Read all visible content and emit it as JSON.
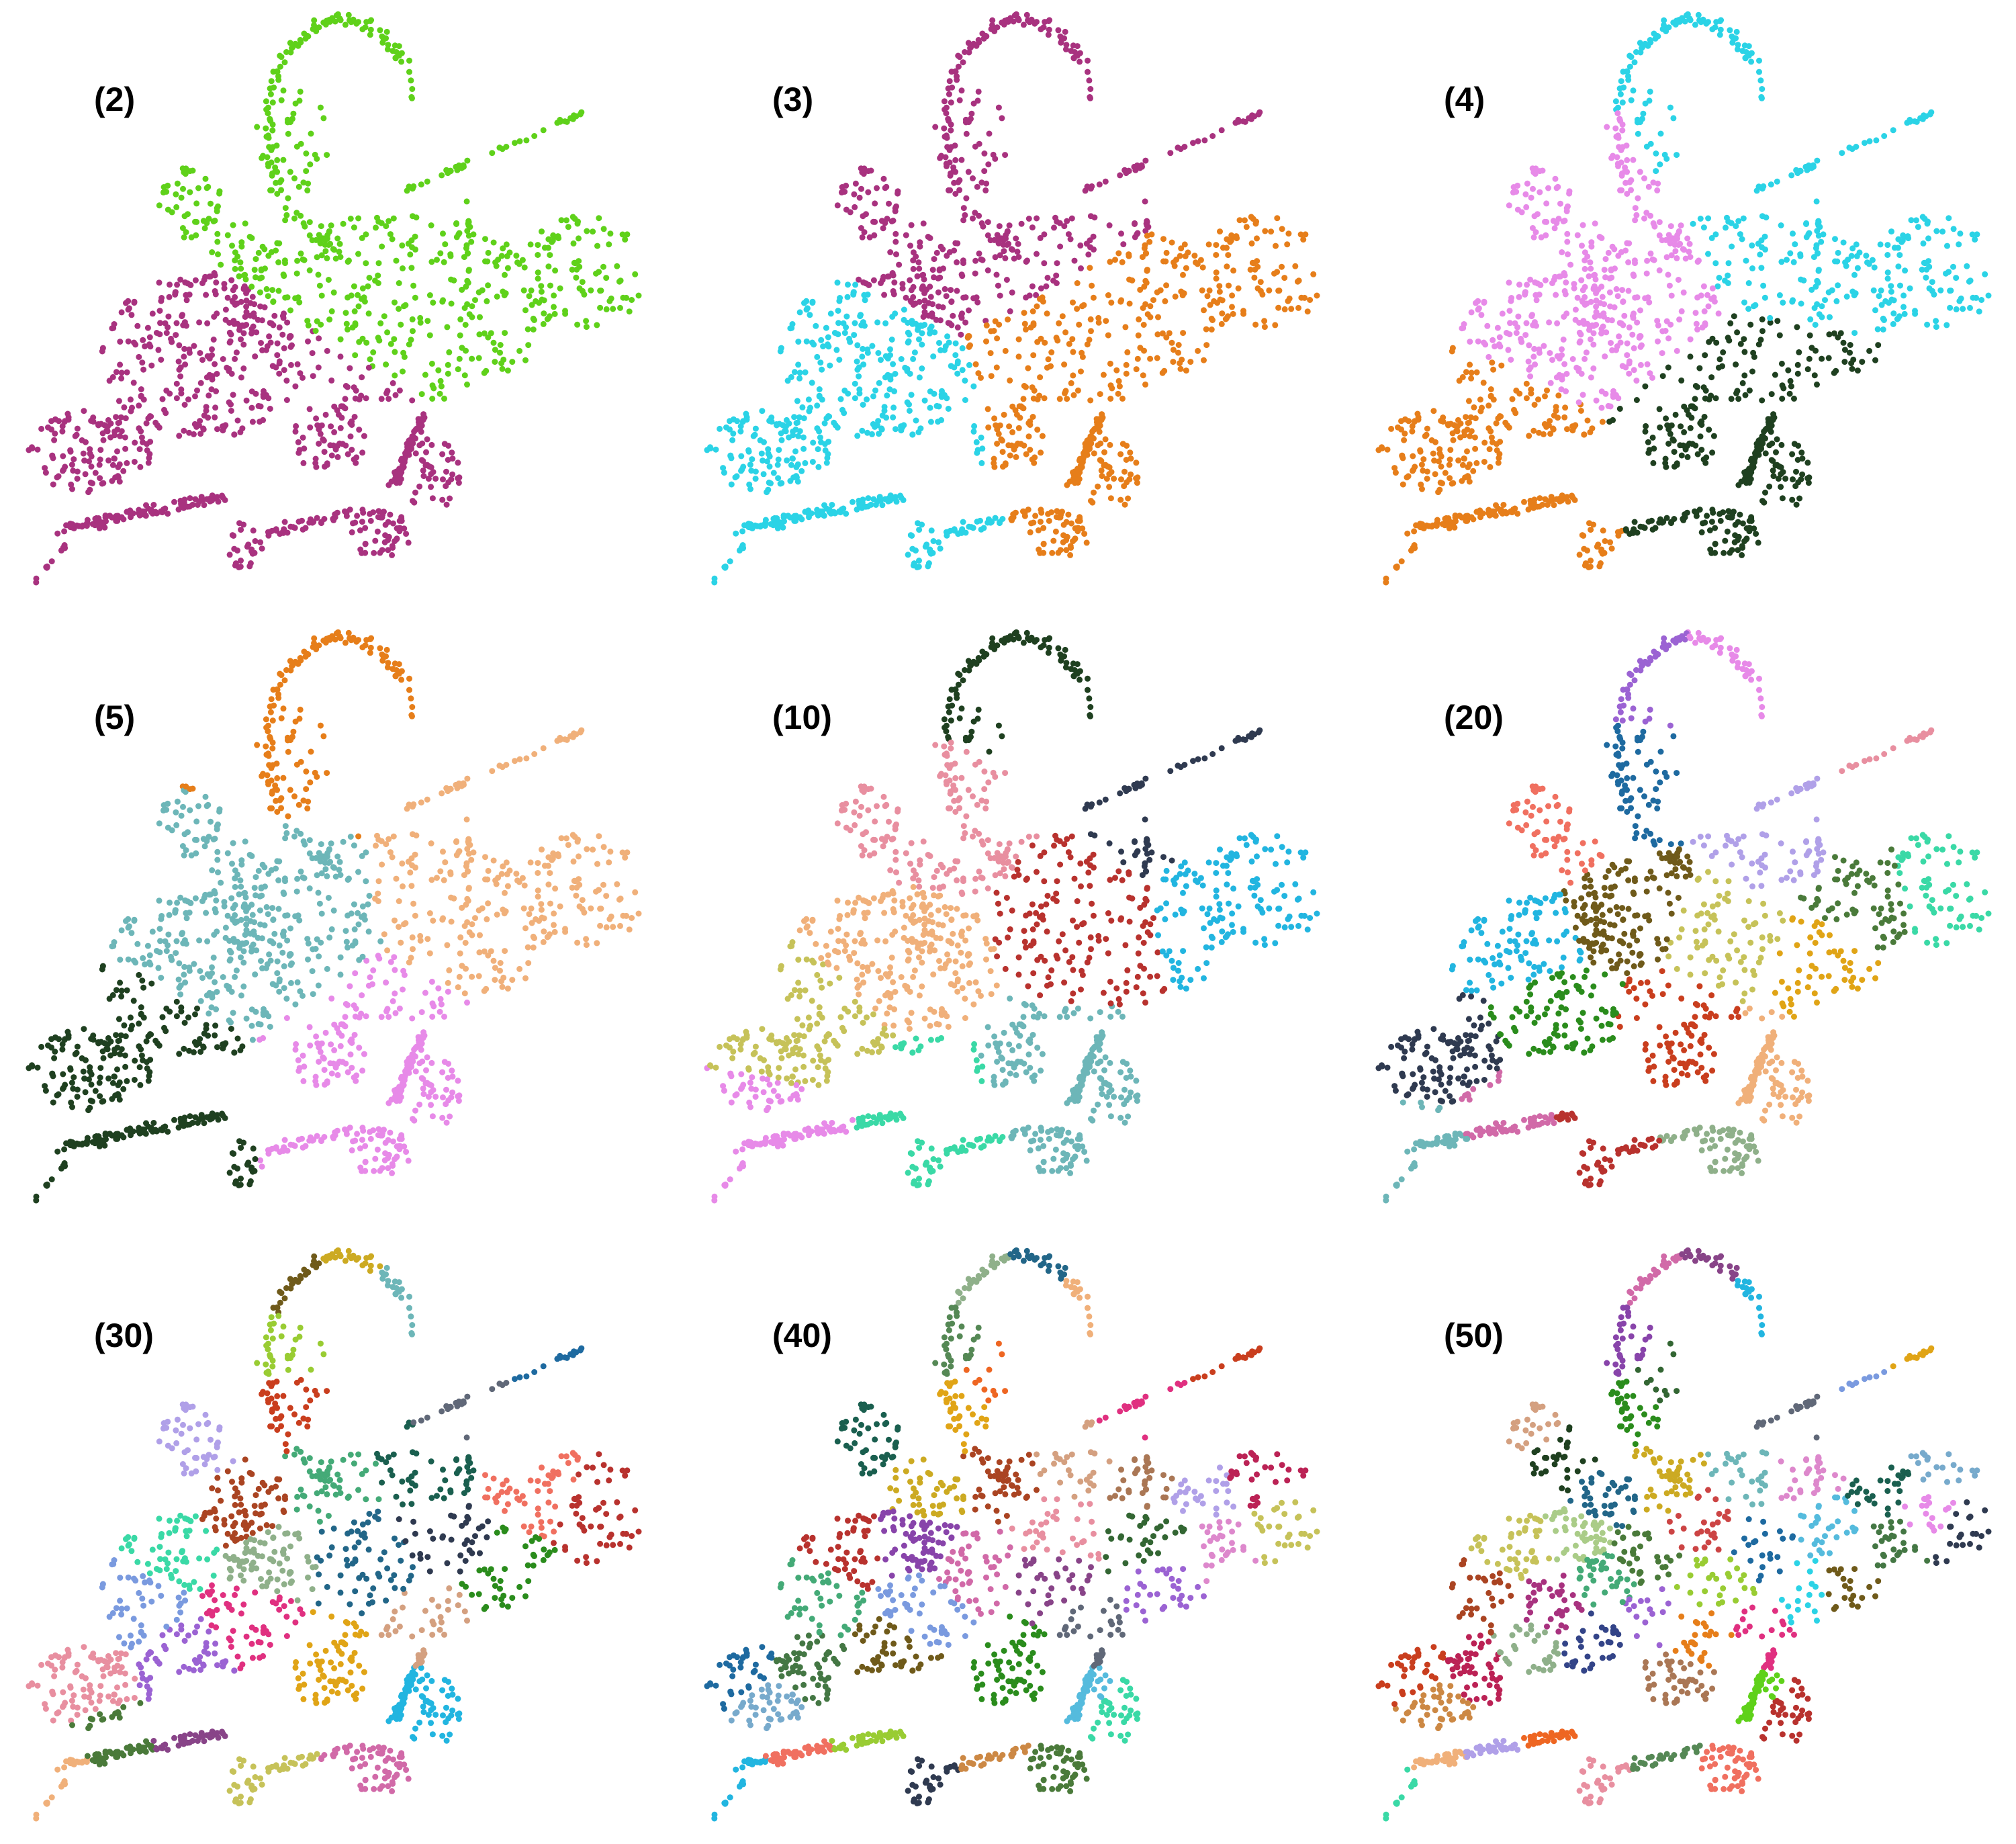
{
  "panels": [
    {
      "label": "(2)"
    },
    {
      "label": "(3)"
    },
    {
      "label": "(4)"
    },
    {
      "label": "(5)"
    },
    {
      "label": "(10)"
    },
    {
      "label": "(20)"
    },
    {
      "label": "(30)"
    },
    {
      "label": "(40)"
    },
    {
      "label": "(50)"
    }
  ]
}
